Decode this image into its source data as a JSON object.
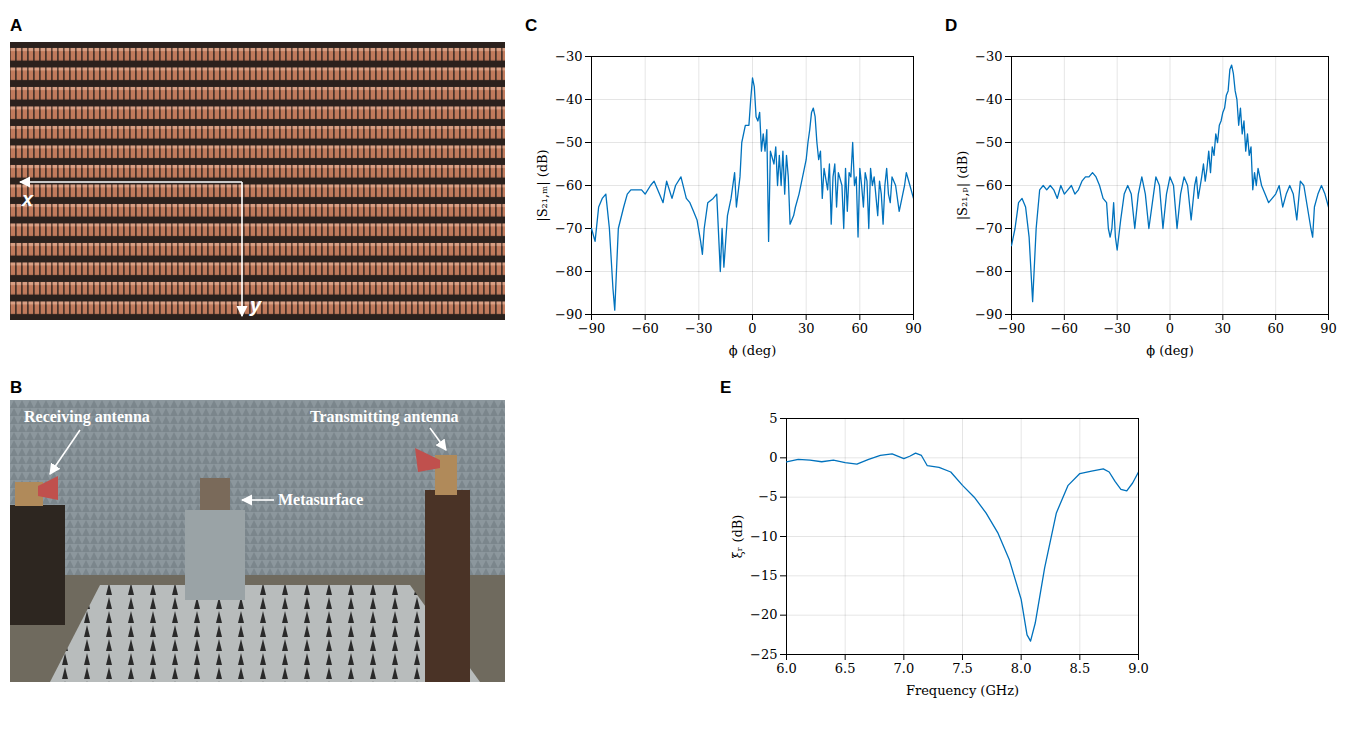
{
  "panels": [
    {
      "panel": "A",
      "labels": {
        "x_axis": "x",
        "y_axis": "y"
      }
    },
    {
      "panel": "B",
      "labels": {
        "receiver": "Receiving antenna",
        "transmitter": "Transmitting antenna",
        "surface": "Metasurface"
      }
    }
  ],
  "chart_data": [
    {
      "panel": "C",
      "type": "line",
      "x_label": "ϕ (deg)",
      "y_label": "|S₂₁,ₘ| (dB)",
      "color": "#0072bd",
      "grid": true,
      "xlim": [
        -90,
        90
      ],
      "ylim": [
        -90,
        -30
      ],
      "xticks": [
        -90,
        -60,
        -30,
        0,
        30,
        60,
        90
      ],
      "yticks": [
        -90,
        -80,
        -70,
        -60,
        -50,
        -40,
        -30
      ],
      "x": [
        -90,
        -88,
        -86,
        -84,
        -82,
        -80,
        -78,
        -77,
        -75,
        -72,
        -70,
        -68,
        -65,
        -62,
        -60,
        -57,
        -55,
        -52,
        -50,
        -48,
        -45,
        -43,
        -40,
        -37,
        -35,
        -33,
        -31,
        -29,
        -28,
        -27,
        -25,
        -22,
        -20,
        -18,
        -17,
        -16,
        -14,
        -12,
        -10,
        -9,
        -7,
        -6,
        -4,
        -2,
        -1,
        0,
        1,
        2,
        3,
        4,
        5,
        6,
        7,
        8,
        9,
        10,
        12,
        13,
        14,
        15,
        16,
        17,
        18,
        19,
        20,
        21,
        23,
        24,
        26,
        28,
        30,
        31,
        32,
        33,
        34,
        35,
        36,
        37,
        38,
        39,
        40,
        42,
        43,
        44,
        45,
        46,
        47,
        48,
        50,
        51,
        52,
        53,
        54,
        55,
        56,
        57,
        58,
        59,
        60,
        61,
        62,
        63,
        64,
        65,
        66,
        67,
        68,
        70,
        71,
        72,
        73,
        74,
        75,
        76,
        77,
        78,
        80,
        82,
        84,
        85,
        86,
        88,
        90
      ],
      "values": [
        -70,
        -73,
        -65,
        -63,
        -62,
        -70,
        -84,
        -89,
        -70,
        -65,
        -62,
        -61,
        -61,
        -61,
        -62,
        -60,
        -59,
        -62,
        -64,
        -59,
        -63,
        -60,
        -58,
        -63,
        -64,
        -66,
        -68,
        -73,
        -76,
        -70,
        -64,
        -63,
        -62,
        -80,
        -70,
        -79,
        -67,
        -63,
        -57,
        -65,
        -58,
        -50,
        -46,
        -46,
        -40,
        -35,
        -37,
        -44,
        -45,
        -43,
        -52,
        -48,
        -52,
        -47,
        -73,
        -52,
        -55,
        -51,
        -60,
        -53,
        -60,
        -52,
        -62,
        -53,
        -58,
        -69,
        -67,
        -65,
        -62,
        -58,
        -54,
        -50,
        -47,
        -43,
        -42,
        -44,
        -50,
        -54,
        -52,
        -63,
        -56,
        -61,
        -55,
        -69,
        -58,
        -55,
        -65,
        -57,
        -60,
        -70,
        -56,
        -66,
        -57,
        -58,
        -50,
        -60,
        -58,
        -72,
        -56,
        -60,
        -65,
        -57,
        -59,
        -70,
        -56,
        -60,
        -58,
        -67,
        -59,
        -62,
        -69,
        -60,
        -56,
        -62,
        -64,
        -58,
        -60,
        -66,
        -62,
        -60,
        -57,
        -60,
        -63
      ]
    },
    {
      "panel": "D",
      "type": "line",
      "x_label": "ϕ (deg)",
      "y_label": "|S₂₁,ₚ| (dB)",
      "color": "#0072bd",
      "grid": true,
      "xlim": [
        -90,
        90
      ],
      "ylim": [
        -90,
        -30
      ],
      "xticks": [
        -90,
        -60,
        -30,
        0,
        30,
        60,
        90
      ],
      "yticks": [
        -90,
        -80,
        -70,
        -60,
        -50,
        -40,
        -30
      ],
      "x": [
        -90,
        -88,
        -86,
        -84,
        -82,
        -80,
        -78,
        -76,
        -74,
        -72,
        -70,
        -68,
        -66,
        -64,
        -62,
        -60,
        -58,
        -56,
        -54,
        -52,
        -50,
        -48,
        -46,
        -44,
        -42,
        -40,
        -38,
        -36,
        -35,
        -34,
        -33,
        -32,
        -31,
        -30,
        -28,
        -26,
        -24,
        -22,
        -20,
        -18,
        -16,
        -14,
        -12,
        -10,
        -8,
        -6,
        -4,
        -2,
        0,
        2,
        4,
        6,
        8,
        10,
        12,
        14,
        15,
        16,
        18,
        19,
        20,
        21,
        22,
        23,
        24,
        25,
        26,
        27,
        28,
        29,
        30,
        31,
        32,
        33,
        34,
        35,
        36,
        37,
        38,
        39,
        40,
        41,
        42,
        43,
        44,
        45,
        46,
        47,
        48,
        49,
        50,
        52,
        54,
        56,
        58,
        60,
        62,
        64,
        66,
        68,
        70,
        72,
        74,
        76,
        78,
        80,
        81,
        82,
        84,
        86,
        88,
        90
      ],
      "values": [
        -74,
        -70,
        -64,
        -63,
        -65,
        -72,
        -87,
        -70,
        -61,
        -60,
        -61,
        -60,
        -61,
        -63,
        -60,
        -62,
        -61,
        -60,
        -62,
        -61,
        -59,
        -58,
        -58,
        -57,
        -58,
        -60,
        -63,
        -64,
        -70,
        -72,
        -70,
        -64,
        -72,
        -75,
        -68,
        -62,
        -60,
        -62,
        -70,
        -62,
        -58,
        -62,
        -70,
        -64,
        -58,
        -60,
        -70,
        -62,
        -58,
        -60,
        -70,
        -62,
        -58,
        -60,
        -68,
        -60,
        -58,
        -63,
        -58,
        -55,
        -59,
        -56,
        -52,
        -57,
        -51,
        -53,
        -48,
        -50,
        -46,
        -45,
        -43,
        -42,
        -39,
        -38,
        -33,
        -32,
        -34,
        -38,
        -40,
        -46,
        -42,
        -48,
        -45,
        -52,
        -48,
        -53,
        -51,
        -61,
        -57,
        -60,
        -56,
        -60,
        -62,
        -64,
        -63,
        -62,
        -60,
        -65,
        -62,
        -60,
        -62,
        -68,
        -59,
        -60,
        -65,
        -70,
        -72,
        -65,
        -62,
        -60,
        -62,
        -65
      ]
    },
    {
      "panel": "E",
      "type": "line",
      "x_label": "Frequency (GHz)",
      "y_label": "ξᵣ (dB)",
      "color": "#0072bd",
      "grid": true,
      "xlim": [
        6,
        9
      ],
      "ylim": [
        -25,
        5
      ],
      "xticks": [
        6,
        6.5,
        7,
        7.5,
        8,
        8.5,
        9
      ],
      "yticks": [
        -25,
        -20,
        -15,
        -10,
        -5,
        0,
        5
      ],
      "x": [
        6.0,
        6.1,
        6.2,
        6.3,
        6.4,
        6.5,
        6.6,
        6.7,
        6.8,
        6.9,
        7.0,
        7.05,
        7.1,
        7.15,
        7.2,
        7.3,
        7.4,
        7.5,
        7.6,
        7.7,
        7.8,
        7.9,
        8.0,
        8.05,
        8.08,
        8.12,
        8.2,
        8.3,
        8.4,
        8.5,
        8.6,
        8.7,
        8.75,
        8.8,
        8.85,
        8.9,
        8.95,
        9.0
      ],
      "values": [
        -0.5,
        -0.2,
        -0.3,
        -0.5,
        -0.3,
        -0.6,
        -0.8,
        -0.2,
        0.3,
        0.5,
        -0.1,
        0.2,
        0.6,
        0.3,
        -1.0,
        -1.2,
        -1.8,
        -3.5,
        -5.0,
        -7.0,
        -9.5,
        -13,
        -18,
        -22.5,
        -23.3,
        -21,
        -14,
        -7,
        -3.5,
        -2.0,
        -1.7,
        -1.4,
        -1.8,
        -3,
        -4,
        -4.2,
        -3.2,
        -1.8
      ]
    }
  ]
}
